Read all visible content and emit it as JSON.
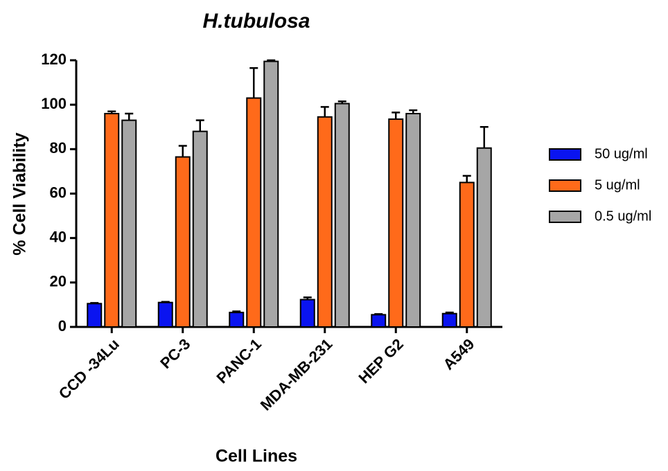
{
  "chart_data": {
    "type": "bar",
    "title": "H.tubulosa",
    "x_label": "Cell Lines",
    "y_label": "% Cell Viability",
    "categories": [
      "CCD -34Lu",
      "PC-3",
      "PANC-1",
      "MDA-MB-231",
      "HEP G2",
      "A549"
    ],
    "series": [
      {
        "name": "50 ug/ml",
        "color": "#0a14f0",
        "values": [
          10.5,
          11,
          6.5,
          12.3,
          5.5,
          6
        ],
        "errors": [
          0.3,
          0.3,
          0.5,
          1,
          0.3,
          0.5
        ]
      },
      {
        "name": "5 ug/ml",
        "color": "#ff6a1a",
        "values": [
          96,
          76.5,
          103,
          94.5,
          93.5,
          65
        ],
        "errors": [
          1,
          5,
          13.5,
          4.5,
          3,
          3
        ]
      },
      {
        "name": "0.5 ug/ml",
        "color": "#a6a6a6",
        "values": [
          93,
          88,
          119.5,
          100.5,
          96,
          80.5
        ],
        "errors": [
          3,
          5,
          0.5,
          1,
          1.5,
          9.5
        ]
      }
    ],
    "ylim": [
      0,
      120
    ],
    "yticks": [
      0,
      20,
      40,
      60,
      80,
      100,
      120
    ],
    "legend": "right"
  }
}
